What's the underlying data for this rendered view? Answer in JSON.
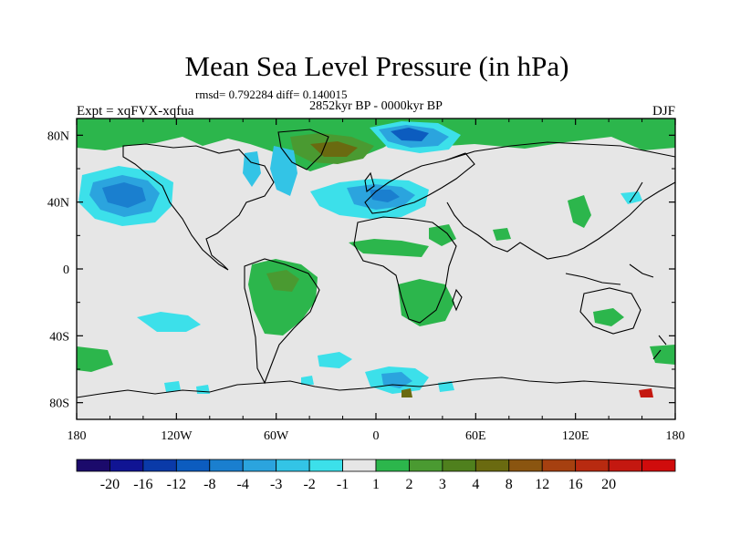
{
  "chart_data": {
    "type": "heatmap",
    "title": "Mean Sea Level Pressure (in hPa)",
    "stats_text": "rmsd= 0.792284 diff= 0.140015",
    "subtitle": "2852kyr BP - 0000kyr BP",
    "experiment": "Expt = xqFVX-xqfua",
    "season": "DJF",
    "x_ticks": [
      "180",
      "120W",
      "60W",
      "0",
      "60E",
      "120E",
      "180"
    ],
    "y_ticks": [
      "80N",
      "40N",
      "0",
      "40S",
      "80S"
    ],
    "x_tick_values": [
      -180,
      -120,
      -60,
      0,
      60,
      120,
      180
    ],
    "y_tick_values": [
      80,
      40,
      0,
      -40,
      -80
    ],
    "xlim": [
      -180,
      180
    ],
    "ylim": [
      -90,
      90
    ],
    "colorbar": {
      "colors": [
        "#1b0a6b",
        "#101493",
        "#0a3aa8",
        "#0c5cbf",
        "#1a7fcf",
        "#2ba4de",
        "#33c4e6",
        "#3ce0ea",
        "#e6e6e6",
        "#2cb64c",
        "#4a9a31",
        "#4f801d",
        "#6a6a10",
        "#8a5510",
        "#a64010",
        "#b82a10",
        "#c41810",
        "#d00c0c"
      ],
      "labels": [
        "-20",
        "-16",
        "-12",
        "-8",
        "-4",
        "-3",
        "-2",
        "-1",
        "1",
        "2",
        "3",
        "4",
        "8",
        "12",
        "16",
        "20"
      ]
    },
    "anomaly_regions": [
      {
        "name": "north-pacific-low",
        "center": [
          -145,
          43
        ],
        "value": -3
      },
      {
        "name": "north-atlantic-low",
        "center": [
          10,
          45
        ],
        "value": -2
      },
      {
        "name": "arctic-siberia-low",
        "center": [
          35,
          82
        ],
        "value": -4
      },
      {
        "name": "greenland-high",
        "center": [
          -20,
          72
        ],
        "value": 4
      },
      {
        "name": "south-america-high",
        "center": [
          -60,
          -10
        ],
        "value": 2
      },
      {
        "name": "southern-africa-high",
        "center": [
          25,
          -20
        ],
        "value": 2
      },
      {
        "name": "antarctic-low",
        "center": [
          20,
          -68
        ],
        "value": -3
      },
      {
        "name": "south-pacific-low",
        "center": [
          -150,
          -32
        ],
        "value": -1
      },
      {
        "name": "eastern-arctic-high",
        "center": [
          150,
          82
        ],
        "value": 2
      }
    ]
  }
}
